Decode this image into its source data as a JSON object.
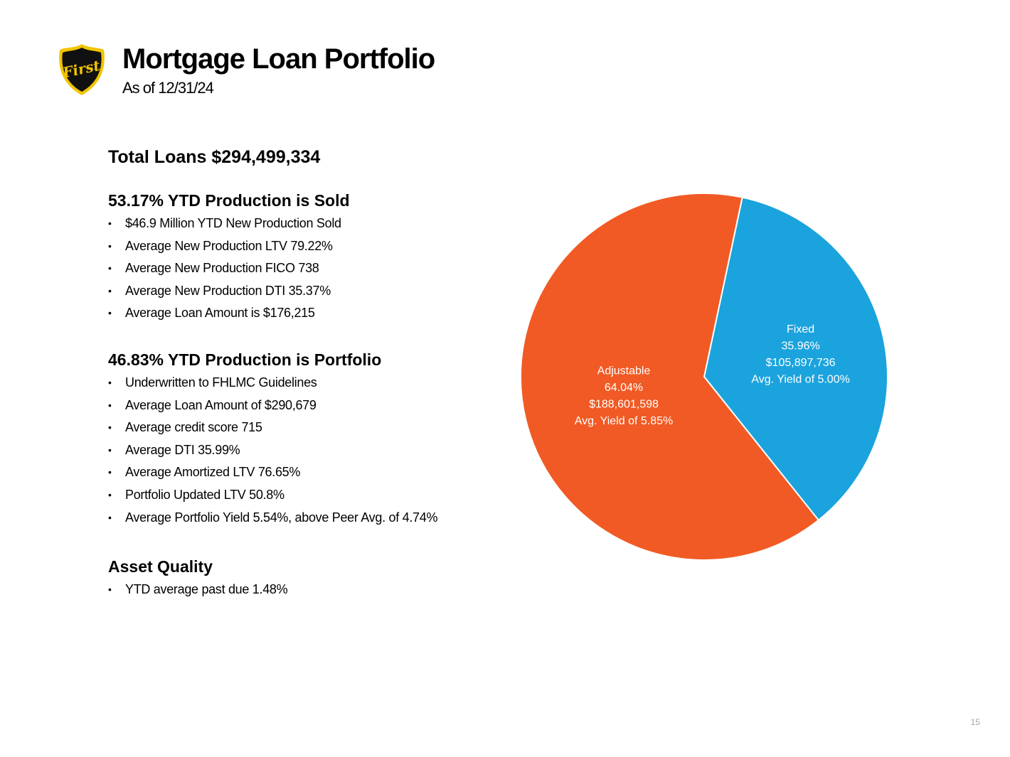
{
  "header": {
    "title": "Mortgage Loan Portfolio",
    "subtitle": "As of 12/31/24",
    "logo": {
      "text": "First",
      "colors": {
        "outer": "#f1c400",
        "inner": "#111111"
      }
    }
  },
  "content": {
    "total": "Total Loans $294,499,334",
    "sections": [
      {
        "heading": "53.17% YTD Production is Sold",
        "items": [
          "$46.9 Million YTD New Production Sold",
          "Average New Production LTV 79.22%",
          "Average New Production FICO 738",
          "Average New Production DTI 35.37%",
          "Average Loan Amount is $176,215"
        ]
      },
      {
        "heading": "46.83% YTD Production is Portfolio",
        "items": [
          "Underwritten to FHLMC Guidelines",
          "Average Loan Amount of $290,679",
          "Average credit score 715",
          "Average DTI 35.99%",
          "Average Amortized LTV 76.65%",
          "Portfolio Updated LTV 50.8%",
          "Average Portfolio Yield 5.54%, above Peer Avg. of 4.74%"
        ]
      },
      {
        "heading": "Asset Quality",
        "items": [
          "YTD average past due 1.48%"
        ]
      }
    ]
  },
  "chart_data": {
    "type": "pie",
    "title": "",
    "legend": "none",
    "slices": [
      {
        "name": "Fixed",
        "percent": 35.96,
        "value": 105897736,
        "label_lines": [
          "Fixed",
          "35.96%",
          "$105,897,736",
          "Avg. Yield of 5.00%"
        ],
        "color": "#1ba3dd"
      },
      {
        "name": "Adjustable",
        "percent": 64.04,
        "value": 188601598,
        "label_lines": [
          "Adjustable",
          "64.04%",
          "$188,601,598",
          "Avg. Yield of 5.85%"
        ],
        "color": "#f15a24"
      }
    ]
  },
  "footer": {
    "page_number": "15"
  }
}
